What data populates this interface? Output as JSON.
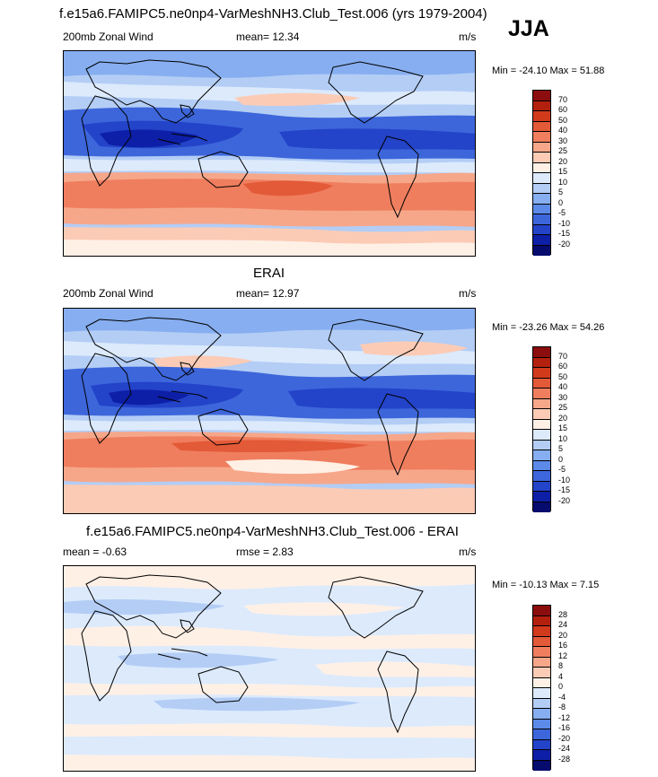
{
  "season": "JJA",
  "panels": [
    {
      "title": "f.e15a6.FAMIPC5.ne0np4-VarMeshNH3.Club_Test.006 (yrs 1979-2004)",
      "left_label": "200mb Zonal Wind",
      "center_label": "mean=  12.34",
      "units": "m/s",
      "minmax": "Min = -24.10 Max =  51.88",
      "colorbar": {
        "labels": [
          "70",
          "60",
          "50",
          "40",
          "30",
          "25",
          "20",
          "15",
          "10",
          "5",
          "0",
          "-5",
          "-10",
          "-15",
          "-20"
        ],
        "colors": [
          "#8c0d0d",
          "#b3200e",
          "#d23a1c",
          "#e35a38",
          "#ef7e5e",
          "#f6a78a",
          "#fccbb5",
          "#fff0e6",
          "#dceafc",
          "#b3cdf5",
          "#86aef0",
          "#5b8ae8",
          "#3d66db",
          "#2343c9",
          "#0d1fa6",
          "#060b6e"
        ]
      }
    },
    {
      "title": "ERAI",
      "left_label": "200mb Zonal Wind",
      "center_label": "mean=  12.97",
      "units": "m/s",
      "minmax": "Min = -23.26 Max =  54.26",
      "colorbar": {
        "labels": [
          "70",
          "60",
          "50",
          "40",
          "30",
          "25",
          "20",
          "15",
          "10",
          "5",
          "0",
          "-5",
          "-10",
          "-15",
          "-20"
        ],
        "colors": [
          "#8c0d0d",
          "#b3200e",
          "#d23a1c",
          "#e35a38",
          "#ef7e5e",
          "#f6a78a",
          "#fccbb5",
          "#fff0e6",
          "#dceafc",
          "#b3cdf5",
          "#86aef0",
          "#5b8ae8",
          "#3d66db",
          "#2343c9",
          "#0d1fa6",
          "#060b6e"
        ]
      }
    },
    {
      "title": "f.e15a6.FAMIPC5.ne0np4-VarMeshNH3.Club_Test.006 - ERAI",
      "left_label": "mean =  -0.63",
      "center_label": "rmse =   2.83",
      "units": "m/s",
      "minmax": "Min = -10.13 Max =   7.15",
      "colorbar": {
        "labels": [
          "28",
          "24",
          "20",
          "16",
          "12",
          "8",
          "4",
          "0",
          "-4",
          "-8",
          "-12",
          "-16",
          "-20",
          "-24",
          "-28"
        ],
        "colors": [
          "#8c0d0d",
          "#b3200e",
          "#d23a1c",
          "#e35a38",
          "#ef7e5e",
          "#f6a78a",
          "#fccbb5",
          "#fff0e6",
          "#dceafc",
          "#b3cdf5",
          "#86aef0",
          "#5b8ae8",
          "#3d66db",
          "#2343c9",
          "#0d1fa6",
          "#060b6e"
        ]
      }
    }
  ]
}
